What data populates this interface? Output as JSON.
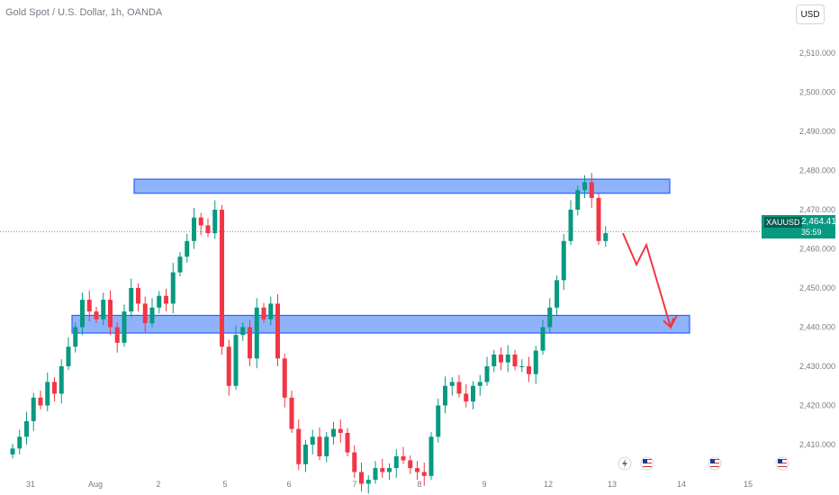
{
  "header": {
    "title": "Gold Spot / U.S. Dollar, 1h, OANDA",
    "currency_label": "USD"
  },
  "price_tag": {
    "symbol": "XAUUSD",
    "price": "2,464.415",
    "countdown": "35:59",
    "color": "#089981"
  },
  "colors": {
    "up": "#089981",
    "down": "#f23645",
    "zone_fill": "#8fb3fb",
    "zone_stroke": "#2962ff",
    "projection": "#f23645"
  },
  "chart_data": {
    "type": "candlestick",
    "title": "Gold Spot / U.S. Dollar, 1h, OANDA",
    "y_ticks": [
      2410,
      2420,
      2430,
      2440,
      2450,
      2460,
      2470,
      2480,
      2490,
      2500,
      2510
    ],
    "y_tick_labels": [
      "2,410.000",
      "2,420.000",
      "2,430.000",
      "2,440.000",
      "2,450.000",
      "2,460.000",
      "2,470.000",
      "2,480.000",
      "2,490.000",
      "2,500.000",
      "2,510.000"
    ],
    "x_tick_labels": [
      "31",
      "Aug",
      "2",
      "5",
      "6",
      "7",
      "8",
      "9",
      "12",
      "13",
      "14",
      "15"
    ],
    "close_series": [
      2409,
      2412,
      2416,
      2422,
      2420,
      2426,
      2423,
      2430,
      2435,
      2440,
      2447,
      2444,
      2442,
      2447,
      2440,
      2436,
      2444,
      2450,
      2446,
      2441,
      2445,
      2448,
      2446,
      2454,
      2458,
      2462,
      2468,
      2466,
      2464,
      2470,
      2435,
      2425,
      2438,
      2440,
      2432,
      2445,
      2442,
      2446,
      2432,
      2422,
      2414,
      2405,
      2410,
      2412,
      2407,
      2412,
      2414,
      2413,
      2408,
      2403,
      2400,
      2401,
      2404,
      2403,
      2404,
      2407,
      2406,
      2404,
      2403,
      2402,
      2412,
      2420,
      2425,
      2426,
      2423,
      2421,
      2425,
      2426,
      2430,
      2433,
      2431,
      2433,
      2430,
      2430,
      2428,
      2434,
      2440,
      2445,
      2452,
      2462,
      2470,
      2475,
      2477,
      2473,
      2462,
      2464
    ],
    "resistance_zone": [
      2474.2,
      2477.8
    ],
    "support_zone": [
      2438.5,
      2443.0
    ],
    "current_price": 2464.415,
    "projection_path": [
      2464,
      2456,
      2461,
      2440,
      2443
    ],
    "grid": false
  },
  "event_markers": [
    "flash-icon",
    "us-flag-icon",
    "us-flag-icon",
    "us-flag-icon"
  ]
}
